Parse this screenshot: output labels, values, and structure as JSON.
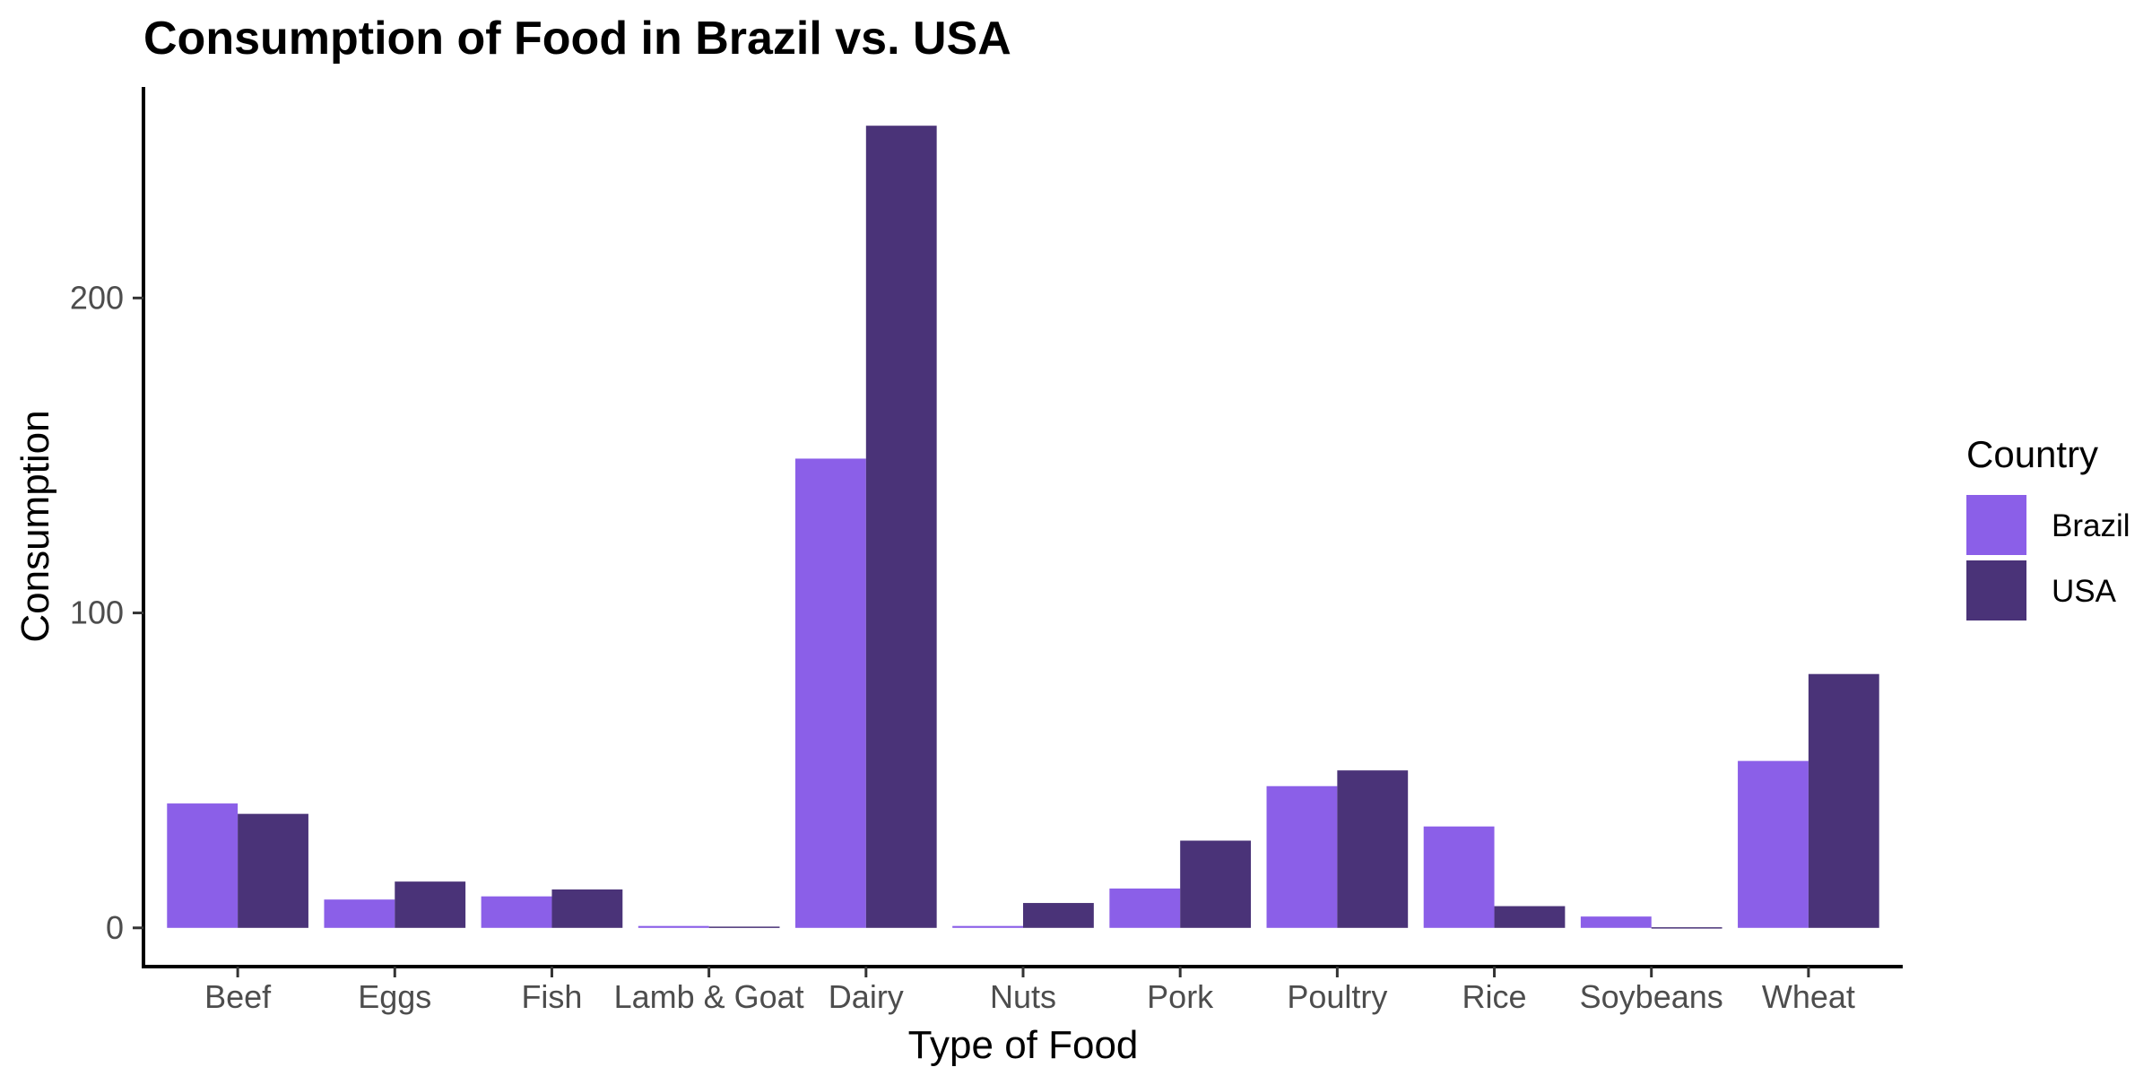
{
  "chart_data": {
    "type": "bar",
    "title": "Consumption of Food in Brazil vs. USA",
    "xlabel": "Type of Food",
    "ylabel": "Consumption",
    "categories": [
      "Beef",
      "Eggs",
      "Fish",
      "Lamb & Goat",
      "Dairy",
      "Nuts",
      "Pork",
      "Poultry",
      "Rice",
      "Soybeans",
      "Wheat"
    ],
    "series": [
      {
        "name": "Brazil",
        "color": "#8b5fe8",
        "values": [
          39.5,
          9.0,
          10.0,
          0.6,
          149.0,
          0.6,
          12.5,
          45.0,
          32.2,
          3.6,
          53.0
        ]
      },
      {
        "name": "USA",
        "color": "#4a3378",
        "values": [
          36.2,
          14.7,
          12.2,
          0.4,
          254.7,
          7.9,
          27.7,
          50.0,
          6.9,
          0.2,
          80.6
        ]
      }
    ],
    "ylim": [
      -12.3,
      267
    ],
    "yticks": [
      0,
      100,
      200
    ],
    "grid": false,
    "legend": {
      "title": "Country",
      "position": "right"
    }
  }
}
